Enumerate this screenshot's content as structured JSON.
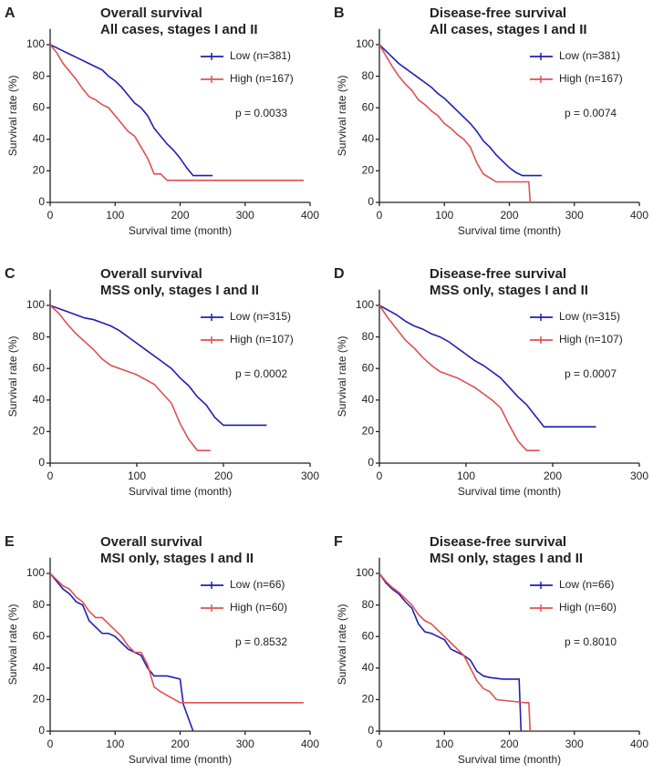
{
  "chart_data": [
    {
      "type": "line",
      "label": "A",
      "title": "Overall survival",
      "subtitle": "All cases, stages I and II",
      "xlabel": "Survival time (month)",
      "ylabel": "Survival rate (%)",
      "annotation": "p = 0.0033",
      "xlim": [
        0,
        400
      ],
      "xticks": [
        0,
        100,
        200,
        300,
        400
      ],
      "ylim": [
        0,
        110
      ],
      "yticks": [
        0,
        20,
        40,
        60,
        80,
        100
      ],
      "series": [
        {
          "name": "Low (n=381)",
          "color": "#1f1fb4",
          "x": [
            0,
            10,
            20,
            30,
            40,
            50,
            60,
            70,
            80,
            90,
            100,
            110,
            120,
            130,
            140,
            150,
            160,
            170,
            180,
            190,
            200,
            210,
            220,
            250
          ],
          "values": [
            100,
            98,
            96,
            94,
            92,
            90,
            88,
            86,
            84,
            80,
            77,
            73,
            68,
            63,
            60,
            55,
            47,
            42,
            37,
            33,
            28,
            22,
            17,
            17
          ]
        },
        {
          "name": "High (n=167)",
          "color": "#e05050",
          "x": [
            0,
            10,
            20,
            30,
            40,
            50,
            60,
            70,
            80,
            90,
            100,
            110,
            120,
            130,
            140,
            150,
            160,
            170,
            180,
            390
          ],
          "values": [
            100,
            95,
            88,
            83,
            78,
            72,
            67,
            65,
            62,
            60,
            55,
            50,
            45,
            42,
            35,
            28,
            18,
            18,
            14,
            14
          ]
        }
      ]
    },
    {
      "type": "line",
      "label": "B",
      "title": "Disease-free survival",
      "subtitle": "All cases, stages I and II",
      "xlabel": "Survival time (month)",
      "ylabel": "Survival rate (%)",
      "annotation": "p = 0.0074",
      "xlim": [
        0,
        400
      ],
      "xticks": [
        0,
        100,
        200,
        300,
        400
      ],
      "ylim": [
        0,
        110
      ],
      "yticks": [
        0,
        20,
        40,
        60,
        80,
        100
      ],
      "series": [
        {
          "name": "Low (n=381)",
          "color": "#1f1fb4",
          "x": [
            0,
            10,
            20,
            30,
            40,
            50,
            60,
            70,
            80,
            90,
            100,
            110,
            120,
            130,
            140,
            150,
            160,
            170,
            180,
            190,
            200,
            210,
            220,
            250
          ],
          "values": [
            100,
            96,
            92,
            88,
            85,
            82,
            79,
            76,
            73,
            69,
            66,
            62,
            58,
            54,
            50,
            45,
            39,
            35,
            30,
            26,
            22,
            19,
            17,
            17
          ]
        },
        {
          "name": "High (n=167)",
          "color": "#e05050",
          "x": [
            0,
            10,
            20,
            30,
            40,
            50,
            60,
            70,
            80,
            90,
            100,
            110,
            120,
            130,
            140,
            150,
            160,
            180,
            230,
            232
          ],
          "values": [
            100,
            93,
            86,
            80,
            75,
            71,
            65,
            62,
            58,
            55,
            50,
            47,
            43,
            40,
            35,
            25,
            18,
            13,
            13,
            0
          ]
        }
      ]
    },
    {
      "type": "line",
      "label": "C",
      "title": "Overall survival",
      "subtitle": "MSS only, stages I and II",
      "xlabel": "Survival time (month)",
      "ylabel": "Survival rate (%)",
      "annotation": "p = 0.0002",
      "xlim": [
        0,
        300
      ],
      "xticks": [
        0,
        100,
        200,
        300
      ],
      "ylim": [
        0,
        110
      ],
      "yticks": [
        0,
        20,
        40,
        60,
        80,
        100
      ],
      "series": [
        {
          "name": "Low (n=315)",
          "color": "#1f1fb4",
          "x": [
            0,
            10,
            20,
            30,
            40,
            50,
            60,
            70,
            80,
            90,
            100,
            110,
            120,
            130,
            140,
            150,
            160,
            170,
            180,
            190,
            200,
            250
          ],
          "values": [
            100,
            98,
            96,
            94,
            92,
            91,
            89,
            87,
            84,
            80,
            76,
            72,
            68,
            64,
            60,
            54,
            49,
            42,
            37,
            29,
            24,
            24
          ]
        },
        {
          "name": "High (n=107)",
          "color": "#e05050",
          "x": [
            0,
            10,
            20,
            30,
            40,
            50,
            60,
            70,
            80,
            90,
            100,
            110,
            120,
            130,
            140,
            150,
            160,
            170,
            185
          ],
          "values": [
            100,
            95,
            88,
            82,
            77,
            72,
            66,
            62,
            60,
            58,
            56,
            53,
            50,
            44,
            38,
            25,
            15,
            8,
            8
          ]
        }
      ]
    },
    {
      "type": "line",
      "label": "D",
      "title": "Disease-free survival",
      "subtitle": "MSS only, stages I and II",
      "xlabel": "Survival time (month)",
      "ylabel": "Survival rate (%)",
      "annotation": "p = 0.0007",
      "xlim": [
        0,
        300
      ],
      "xticks": [
        0,
        100,
        200,
        300
      ],
      "ylim": [
        0,
        110
      ],
      "yticks": [
        0,
        20,
        40,
        60,
        80,
        100
      ],
      "series": [
        {
          "name": "Low (n=315)",
          "color": "#1f1fb4",
          "x": [
            0,
            10,
            20,
            30,
            40,
            50,
            60,
            70,
            80,
            90,
            100,
            110,
            120,
            130,
            140,
            150,
            160,
            170,
            180,
            190,
            200,
            250
          ],
          "values": [
            100,
            97,
            94,
            90,
            87,
            85,
            82,
            80,
            77,
            73,
            69,
            65,
            62,
            58,
            54,
            48,
            42,
            37,
            30,
            23,
            23,
            23
          ]
        },
        {
          "name": "High (n=107)",
          "color": "#e05050",
          "x": [
            0,
            10,
            20,
            30,
            40,
            50,
            60,
            70,
            80,
            90,
            100,
            110,
            120,
            130,
            140,
            150,
            160,
            170,
            185
          ],
          "values": [
            100,
            92,
            85,
            78,
            73,
            67,
            62,
            58,
            56,
            54,
            51,
            48,
            44,
            40,
            35,
            24,
            14,
            8,
            8
          ]
        }
      ]
    },
    {
      "type": "line",
      "label": "E",
      "title": "Overall survival",
      "subtitle": "MSI only, stages I and II",
      "xlabel": "Survival time (month)",
      "ylabel": "Survival rate (%)",
      "annotation": "p = 0.8532",
      "xlim": [
        0,
        400
      ],
      "xticks": [
        0,
        100,
        200,
        300,
        400
      ],
      "ylim": [
        0,
        110
      ],
      "yticks": [
        0,
        20,
        40,
        60,
        80,
        100
      ],
      "series": [
        {
          "name": "Low (n=66)",
          "color": "#1f1fb4",
          "x": [
            0,
            10,
            20,
            30,
            40,
            50,
            60,
            70,
            80,
            90,
            100,
            110,
            120,
            130,
            140,
            150,
            160,
            170,
            180,
            200,
            205,
            220
          ],
          "values": [
            100,
            95,
            90,
            87,
            82,
            80,
            70,
            66,
            62,
            62,
            60,
            56,
            52,
            50,
            48,
            40,
            35,
            35,
            35,
            33,
            17,
            0
          ]
        },
        {
          "name": "High (n=60)",
          "color": "#e05050",
          "x": [
            0,
            10,
            20,
            30,
            40,
            50,
            60,
            70,
            80,
            90,
            100,
            110,
            120,
            130,
            140,
            150,
            160,
            170,
            200,
            390
          ],
          "values": [
            100,
            96,
            92,
            90,
            85,
            82,
            76,
            72,
            72,
            68,
            64,
            60,
            54,
            50,
            50,
            42,
            28,
            25,
            18,
            18
          ]
        }
      ]
    },
    {
      "type": "line",
      "label": "F",
      "title": "Disease-free survival",
      "subtitle": "MSI only, stages I and II",
      "xlabel": "Survival time (month)",
      "ylabel": "Survival rate (%)",
      "annotation": "p = 0.8010",
      "xlim": [
        0,
        400
      ],
      "xticks": [
        0,
        100,
        200,
        300,
        400
      ],
      "ylim": [
        0,
        110
      ],
      "yticks": [
        0,
        20,
        40,
        60,
        80,
        100
      ],
      "series": [
        {
          "name": "Low (n=66)",
          "color": "#1f1fb4",
          "x": [
            0,
            10,
            20,
            30,
            40,
            50,
            60,
            70,
            80,
            90,
            100,
            110,
            120,
            130,
            140,
            150,
            160,
            170,
            190,
            215,
            218
          ],
          "values": [
            100,
            94,
            90,
            87,
            82,
            78,
            68,
            63,
            62,
            60,
            58,
            52,
            50,
            48,
            45,
            38,
            35,
            34,
            33,
            33,
            0
          ]
        },
        {
          "name": "High (n=60)",
          "color": "#e05050",
          "x": [
            0,
            10,
            20,
            30,
            40,
            50,
            60,
            70,
            80,
            90,
            100,
            110,
            120,
            130,
            140,
            150,
            160,
            170,
            180,
            225,
            230,
            232
          ],
          "values": [
            100,
            95,
            91,
            88,
            84,
            80,
            74,
            70,
            68,
            64,
            60,
            56,
            52,
            48,
            40,
            32,
            27,
            25,
            20,
            18,
            18,
            0
          ]
        }
      ]
    }
  ]
}
